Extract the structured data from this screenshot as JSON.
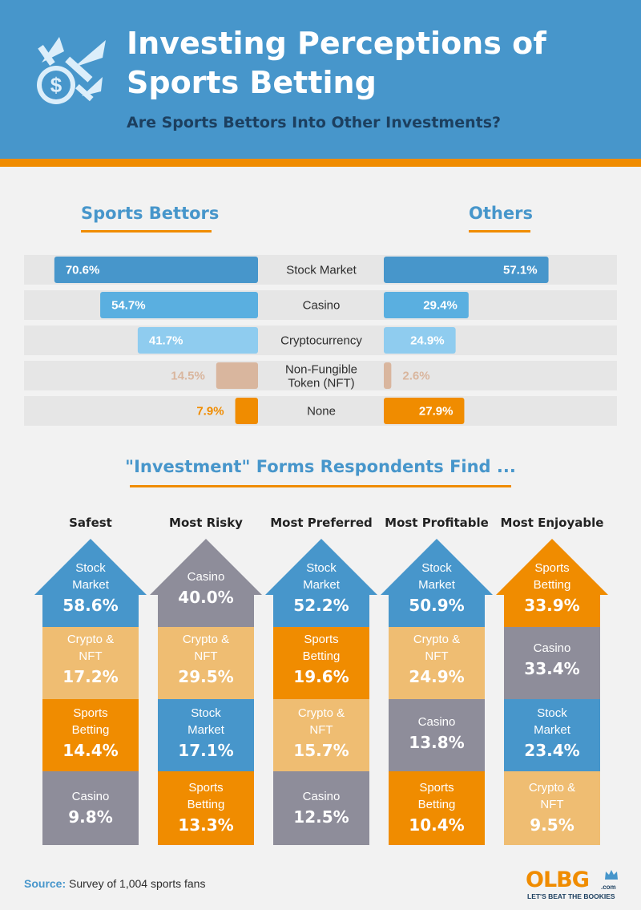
{
  "header": {
    "title": "Investing Perceptions of Sports Betting",
    "subtitle": "Are Sports Bettors Into Other Investments?"
  },
  "groups": {
    "left": "Sports Bettors",
    "right": "Others"
  },
  "colors": {
    "blue_dark": "#4796cb",
    "blue_mid": "#5aafe0",
    "blue_light": "#8fccef",
    "tan": "#d9b69e",
    "orange": "#f08c00",
    "gray": "#8e8d9a",
    "peach": "#efbd72",
    "row_bg": "#e6e6e6"
  },
  "section2_title": "\"Investment\" Forms Respondents Find ...",
  "chart_data": [
    {
      "type": "bar",
      "orientation": "horizontal-butterfly",
      "categories": [
        "Stock Market",
        "Casino",
        "Cryptocurrency",
        "Non-Fungible Token (NFT)",
        "None"
      ],
      "series": [
        {
          "name": "Sports Bettors",
          "values": [
            70.6,
            54.7,
            41.7,
            14.5,
            7.9
          ],
          "labels": [
            "70.6%",
            "54.7%",
            "41.7%",
            "14.5%",
            "7.9%"
          ]
        },
        {
          "name": "Others",
          "values": [
            57.1,
            29.4,
            24.9,
            2.6,
            27.9
          ],
          "labels": [
            "57.1%",
            "29.4%",
            "24.9%",
            "2.6%",
            "27.9%"
          ]
        }
      ],
      "colors": [
        "#4796cb",
        "#5aafe0",
        "#8fccef",
        "#d9b69e",
        "#f08c00"
      ],
      "xlim": [
        0,
        100
      ]
    },
    {
      "type": "table",
      "style": "stacked-arrows",
      "columns": [
        {
          "name": "Safest",
          "items": [
            {
              "label": "Stock Market",
              "value": "58.6%",
              "color": "#4796cb"
            },
            {
              "label": "Crypto & NFT",
              "value": "17.2%",
              "color": "#efbd72"
            },
            {
              "label": "Sports Betting",
              "value": "14.4%",
              "color": "#f08c00"
            },
            {
              "label": "Casino",
              "value": "9.8%",
              "color": "#8e8d9a"
            }
          ]
        },
        {
          "name": "Most Risky",
          "items": [
            {
              "label": "Casino",
              "value": "40.0%",
              "color": "#8e8d9a"
            },
            {
              "label": "Crypto & NFT",
              "value": "29.5%",
              "color": "#efbd72"
            },
            {
              "label": "Stock Market",
              "value": "17.1%",
              "color": "#4796cb"
            },
            {
              "label": "Sports Betting",
              "value": "13.3%",
              "color": "#f08c00"
            }
          ]
        },
        {
          "name": "Most Preferred",
          "items": [
            {
              "label": "Stock Market",
              "value": "52.2%",
              "color": "#4796cb"
            },
            {
              "label": "Sports Betting",
              "value": "19.6%",
              "color": "#f08c00"
            },
            {
              "label": "Crypto & NFT",
              "value": "15.7%",
              "color": "#efbd72"
            },
            {
              "label": "Casino",
              "value": "12.5%",
              "color": "#8e8d9a"
            }
          ]
        },
        {
          "name": "Most Profitable",
          "items": [
            {
              "label": "Stock Market",
              "value": "50.9%",
              "color": "#4796cb"
            },
            {
              "label": "Crypto & NFT",
              "value": "24.9%",
              "color": "#efbd72"
            },
            {
              "label": "Casino",
              "value": "13.8%",
              "color": "#8e8d9a"
            },
            {
              "label": "Sports Betting",
              "value": "10.4%",
              "color": "#f08c00"
            }
          ]
        },
        {
          "name": "Most Enjoyable",
          "items": [
            {
              "label": "Sports Betting",
              "value": "33.9%",
              "color": "#f08c00"
            },
            {
              "label": "Casino",
              "value": "33.4%",
              "color": "#8e8d9a"
            },
            {
              "label": "Stock Market",
              "value": "23.4%",
              "color": "#4796cb"
            },
            {
              "label": "Crypto & NFT",
              "value": "9.5%",
              "color": "#efbd72"
            }
          ]
        }
      ]
    }
  ],
  "source": {
    "key": "Source:",
    "text": "Survey of 1,004 sports fans"
  },
  "logo": {
    "name": "OLBG",
    "domain": ".com",
    "tagline": "LET'S BEAT THE BOOKIES"
  }
}
